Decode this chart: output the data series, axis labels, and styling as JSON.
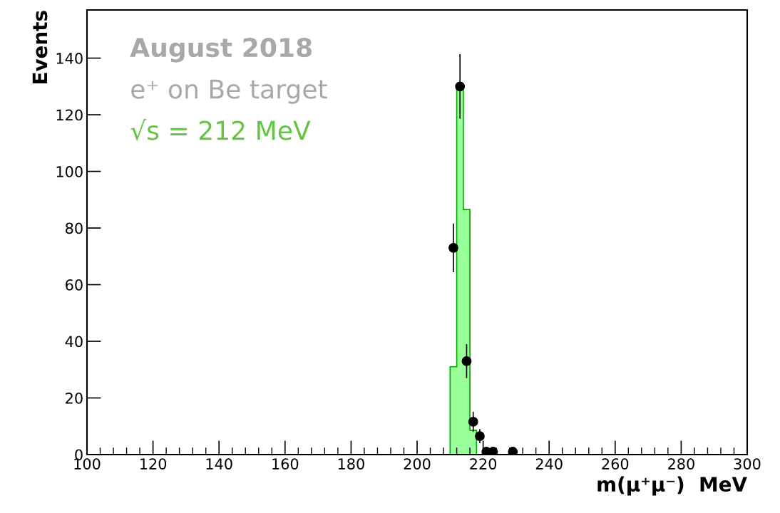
{
  "chart_data": {
    "type": "histogram",
    "xlabel": "m(μ⁺μ⁻)  MeV",
    "ylabel": "Events",
    "annotations": [
      "August 2018",
      "e⁺ on Be target",
      "√s = 212 MeV"
    ],
    "xlim": [
      100,
      300
    ],
    "xticks": [
      100,
      120,
      140,
      160,
      180,
      200,
      220,
      240,
      260,
      280,
      300
    ],
    "ylim": [
      0,
      157
    ],
    "yticks": [
      0,
      20,
      40,
      60,
      80,
      100,
      120,
      140
    ],
    "grid": false,
    "legend": false,
    "series": [
      {
        "type": "histogram",
        "color": "#99ff99",
        "bins": [
          210,
          212,
          214,
          216,
          218
        ],
        "values": [
          31,
          130,
          86.5,
          8.6
        ]
      },
      {
        "type": "scatter",
        "color": "#000000",
        "marker": "circle",
        "x": [
          211,
          213,
          215,
          217,
          219,
          221,
          223,
          229
        ],
        "values": [
          73,
          130,
          33,
          11.6,
          6.5,
          1,
          1,
          1
        ],
        "errors": [
          8.6,
          11.4,
          6,
          3.5,
          2.5,
          1,
          1,
          1
        ]
      }
    ]
  }
}
